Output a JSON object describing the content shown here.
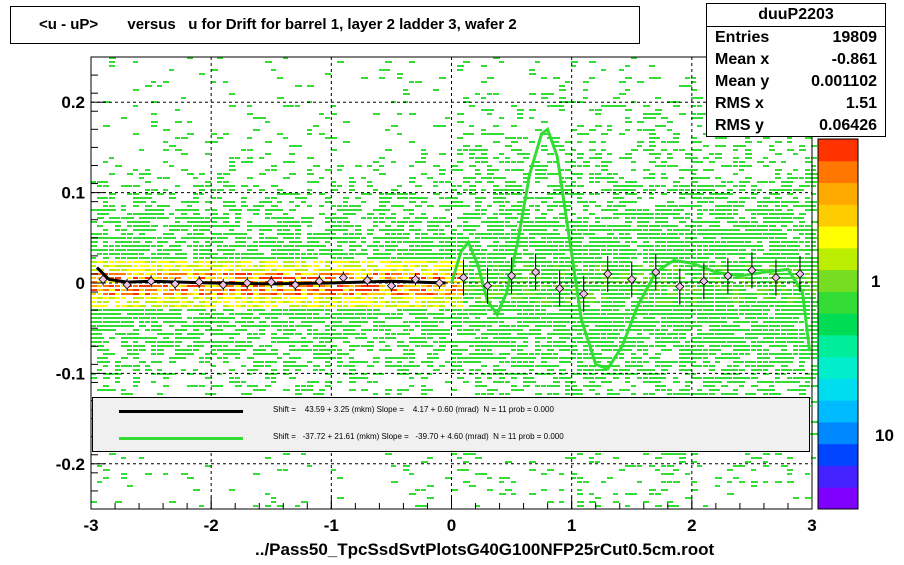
{
  "title": "<u - uP>       versus   u for Drift for barrel 1, layer 2 ladder 3, wafer 2",
  "stats": {
    "name": "duuP2203",
    "rows": [
      {
        "label": "Entries",
        "value": "19809"
      },
      {
        "label": "Mean x",
        "value": "-0.861"
      },
      {
        "label": "Mean y",
        "value": "0.001102"
      },
      {
        "label": "RMS x",
        "value": "1.51"
      },
      {
        "label": "RMS y",
        "value": "0.06426"
      }
    ]
  },
  "legend": [
    {
      "color": "#000000",
      "text": "Shift =    43.59 + 3.25 (mkm) Slope =    4.17 + 0.60 (mrad)  N = 11 prob = 0.000"
    },
    {
      "color": "#33dd33",
      "text": "Shift =   -37.72 + 21.61 (mkm) Slope =   -39.70 + 4.60 (mrad)  N = 11 prob = 0.000"
    }
  ],
  "colorbar": {
    "labels": [
      "1",
      "10"
    ]
  },
  "x_axis_title": "../Pass50_TpcSsdSvtPlotsG40G100NFP25rCut0.5cm.root",
  "chart_data": {
    "type": "heatmap",
    "xlim": [
      -3,
      3
    ],
    "ylim": [
      -0.25,
      0.25
    ],
    "x_ticks": [
      -3,
      -2,
      -1,
      0,
      1,
      2,
      3
    ],
    "y_ticks": [
      -0.2,
      -0.1,
      0,
      0.1,
      0.2
    ],
    "x_tick_labels": [
      "-3",
      "-2",
      "-1",
      "0",
      "1",
      "2",
      "3"
    ],
    "y_tick_labels": [
      "-0.2",
      "-0.1",
      "0",
      "0.1",
      "0.2"
    ],
    "grid": true,
    "profile_points": [
      {
        "x": -2.9,
        "y": 0.004
      },
      {
        "x": -2.7,
        "y": -0.002
      },
      {
        "x": -2.5,
        "y": 0.002
      },
      {
        "x": -2.3,
        "y": -0.001
      },
      {
        "x": -2.1,
        "y": 0.001
      },
      {
        "x": -1.9,
        "y": -0.002
      },
      {
        "x": -1.7,
        "y": 0.0
      },
      {
        "x": -1.5,
        "y": 0.001
      },
      {
        "x": -1.3,
        "y": -0.002
      },
      {
        "x": -1.1,
        "y": 0.002
      },
      {
        "x": -0.9,
        "y": 0.006
      },
      {
        "x": -0.7,
        "y": 0.003
      },
      {
        "x": -0.5,
        "y": -0.003
      },
      {
        "x": -0.3,
        "y": 0.004
      },
      {
        "x": -0.1,
        "y": 0.0
      },
      {
        "x": 0.1,
        "y": 0.006
      },
      {
        "x": 0.3,
        "y": -0.003
      },
      {
        "x": 0.5,
        "y": 0.008
      },
      {
        "x": 0.7,
        "y": 0.012
      },
      {
        "x": 0.9,
        "y": -0.006
      },
      {
        "x": 1.1,
        "y": -0.012
      },
      {
        "x": 1.3,
        "y": 0.01
      },
      {
        "x": 1.5,
        "y": 0.004
      },
      {
        "x": 1.7,
        "y": 0.012
      },
      {
        "x": 1.9,
        "y": -0.004
      },
      {
        "x": 2.1,
        "y": 0.002
      },
      {
        "x": 2.3,
        "y": 0.008
      },
      {
        "x": 2.5,
        "y": 0.014
      },
      {
        "x": 2.7,
        "y": 0.006
      },
      {
        "x": 2.9,
        "y": 0.01
      }
    ],
    "fit_black": [
      {
        "x": -2.95,
        "y": 0.017
      },
      {
        "x": -2.85,
        "y": 0.004
      },
      {
        "x": -2.7,
        "y": 0.001
      },
      {
        "x": -2.5,
        "y": 0.002
      },
      {
        "x": -2.0,
        "y": 0.0
      },
      {
        "x": -1.5,
        "y": -0.001
      },
      {
        "x": -1.0,
        "y": 0.0
      },
      {
        "x": -0.5,
        "y": 0.002
      },
      {
        "x": -0.05,
        "y": 0.0
      }
    ],
    "fit_green": [
      {
        "x": 0.0,
        "y": 0.0
      },
      {
        "x": 0.08,
        "y": 0.035
      },
      {
        "x": 0.14,
        "y": 0.045
      },
      {
        "x": 0.22,
        "y": 0.02
      },
      {
        "x": 0.3,
        "y": -0.02
      },
      {
        "x": 0.38,
        "y": -0.035
      },
      {
        "x": 0.46,
        "y": -0.01
      },
      {
        "x": 0.55,
        "y": 0.045
      },
      {
        "x": 0.65,
        "y": 0.12
      },
      {
        "x": 0.75,
        "y": 0.165
      },
      {
        "x": 0.8,
        "y": 0.17
      },
      {
        "x": 0.88,
        "y": 0.14
      },
      {
        "x": 0.98,
        "y": 0.05
      },
      {
        "x": 1.08,
        "y": -0.04
      },
      {
        "x": 1.2,
        "y": -0.09
      },
      {
        "x": 1.3,
        "y": -0.095
      },
      {
        "x": 1.42,
        "y": -0.07
      },
      {
        "x": 1.55,
        "y": -0.025
      },
      {
        "x": 1.7,
        "y": 0.012
      },
      {
        "x": 1.85,
        "y": 0.025
      },
      {
        "x": 2.0,
        "y": 0.022
      },
      {
        "x": 2.2,
        "y": 0.012
      },
      {
        "x": 2.4,
        "y": 0.008
      },
      {
        "x": 2.6,
        "y": 0.012
      },
      {
        "x": 2.8,
        "y": 0.015
      },
      {
        "x": 2.92,
        "y": -0.01
      },
      {
        "x": 2.98,
        "y": -0.075
      }
    ]
  },
  "colors": {
    "frame": "#000000",
    "grid": "#000000",
    "fit_black": "#000000",
    "fit_green": "#33dd33",
    "palette": [
      "#8000ff",
      "#4422ff",
      "#0044ff",
      "#0088ff",
      "#00bbff",
      "#00ddee",
      "#00eecc",
      "#00ee99",
      "#00dd55",
      "#33dd33",
      "#77dd22",
      "#bbee00",
      "#ffff00",
      "#ffcc00",
      "#ffaa00",
      "#ff7700",
      "#ff3300"
    ]
  }
}
